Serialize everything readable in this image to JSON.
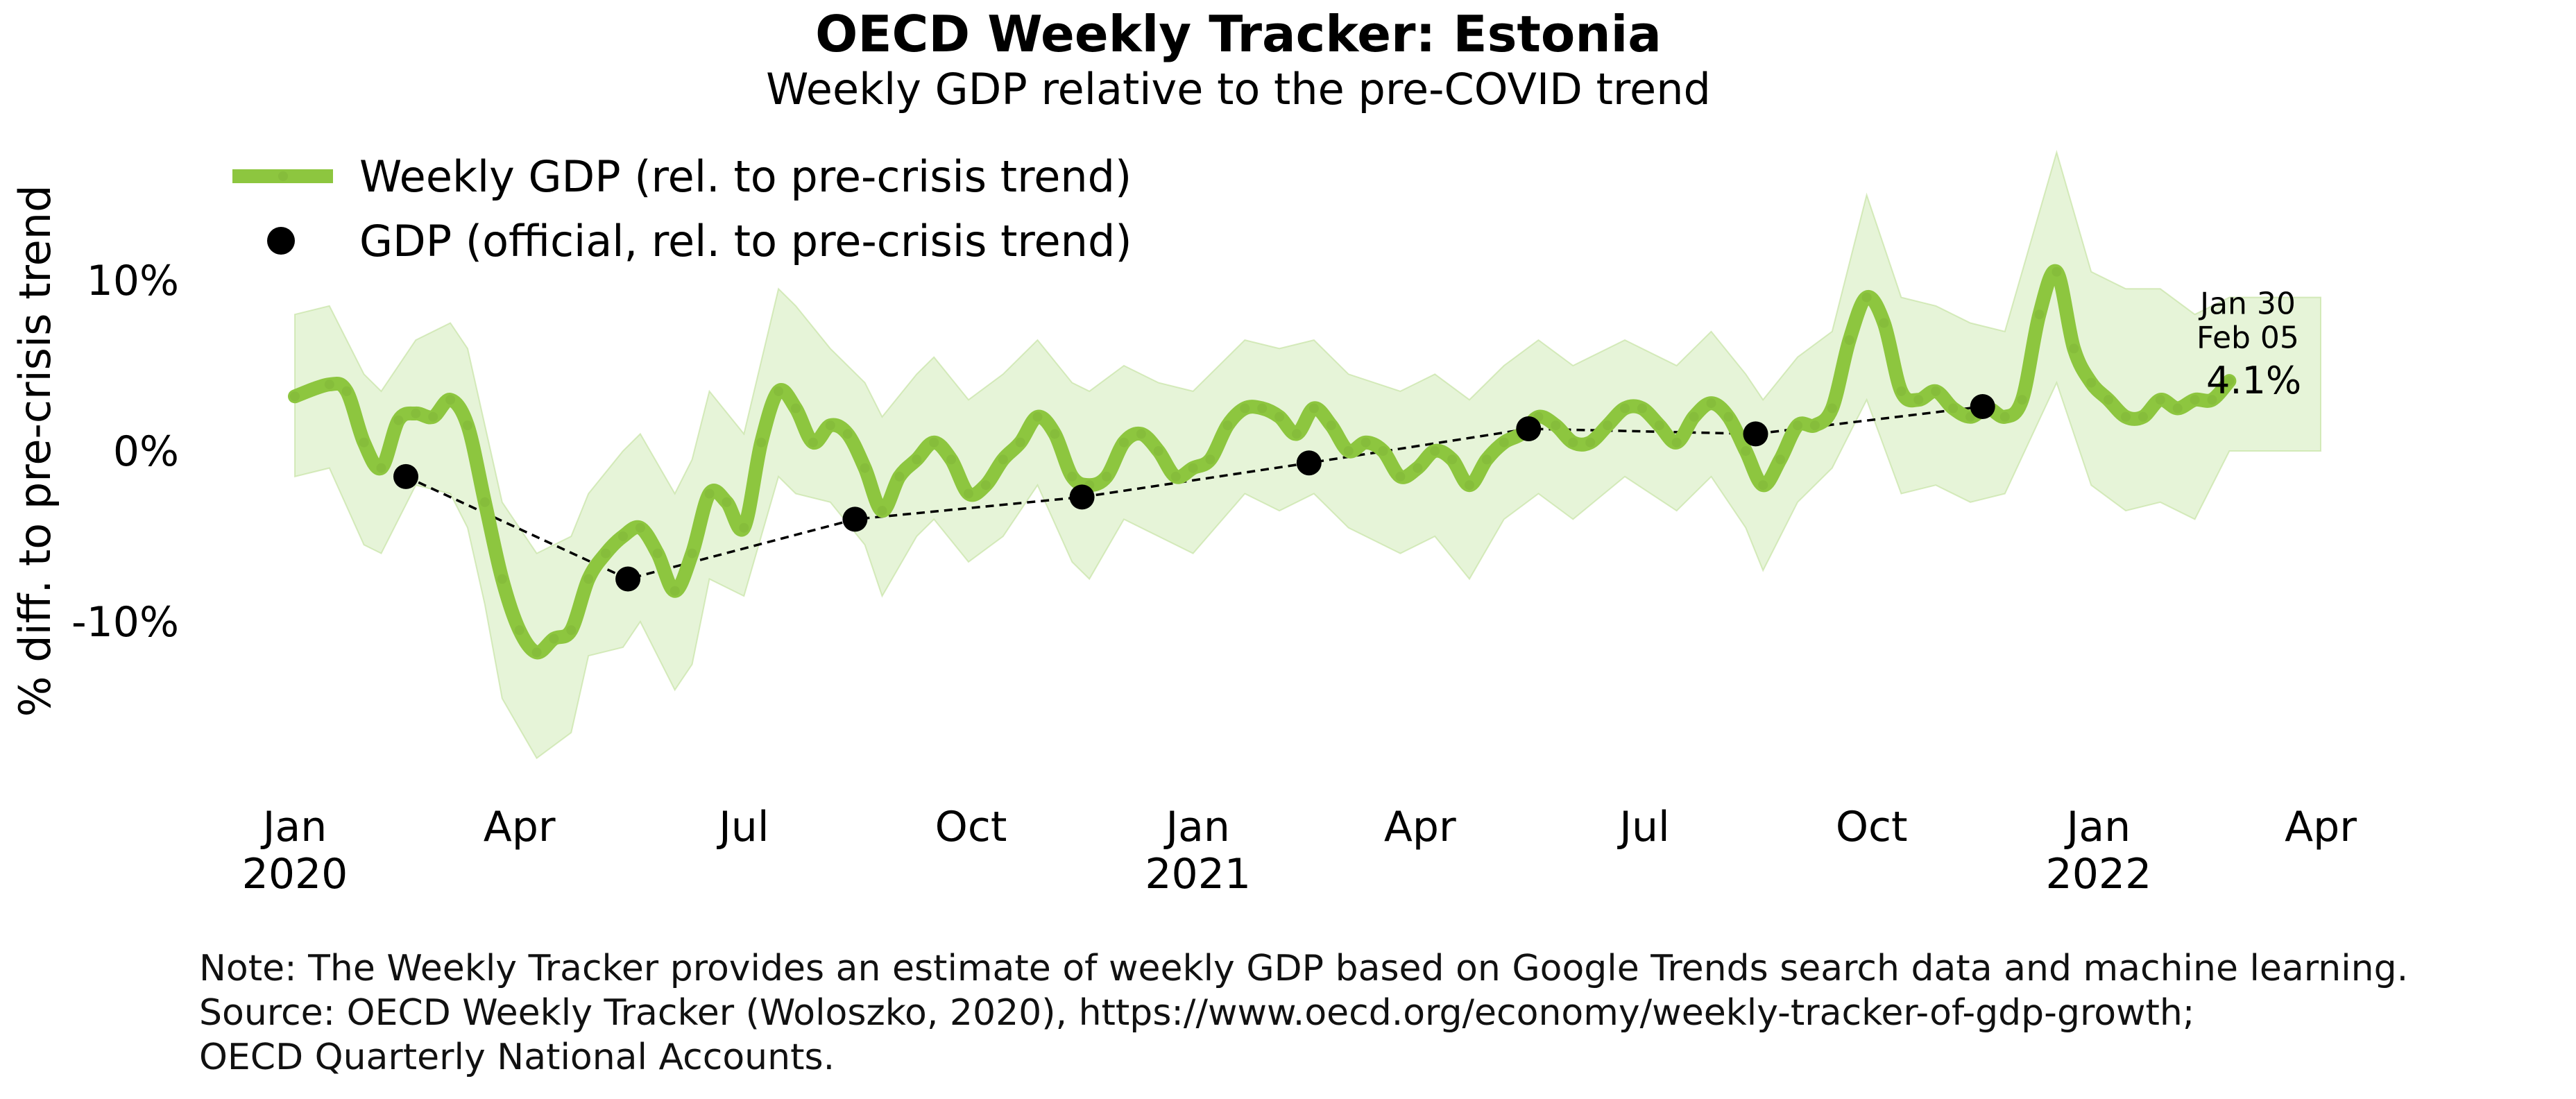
{
  "chart_data": {
    "type": "line",
    "title": "OECD Weekly Tracker: Estonia",
    "subtitle": "Weekly GDP relative to the pre-COVID trend",
    "ylabel": "% diff. to pre-crisis trend",
    "xlabel": "",
    "ylim": [
      -20,
      15
    ],
    "y_ticks": [
      {
        "value": 10,
        "label": "10%"
      },
      {
        "value": 0,
        "label": "0%"
      },
      {
        "value": -10,
        "label": "-10%"
      }
    ],
    "x_range": [
      "2020-01-01",
      "2022-04-01"
    ],
    "x_ticks": [
      {
        "date": "2020-01-01",
        "label": "Jan",
        "year": "2020"
      },
      {
        "date": "2020-04-01",
        "label": "Apr",
        "year": ""
      },
      {
        "date": "2020-07-01",
        "label": "Jul",
        "year": ""
      },
      {
        "date": "2020-10-01",
        "label": "Oct",
        "year": ""
      },
      {
        "date": "2021-01-01",
        "label": "Jan",
        "year": "2021"
      },
      {
        "date": "2021-04-01",
        "label": "Apr",
        "year": ""
      },
      {
        "date": "2021-07-01",
        "label": "Jul",
        "year": ""
      },
      {
        "date": "2021-10-01",
        "label": "Oct",
        "year": ""
      },
      {
        "date": "2022-01-01",
        "label": "Jan",
        "year": "2022"
      },
      {
        "date": "2022-04-01",
        "label": "Apr",
        "year": ""
      }
    ],
    "grid": false,
    "legend_position": "top-left",
    "series": [
      {
        "name": "Weekly GDP (rel. to pre-crisis trend)",
        "style": "thick-line",
        "color": "#8dc63f",
        "points": [
          [
            "2020-01-01",
            3.2
          ],
          [
            "2020-01-15",
            3.9
          ],
          [
            "2020-01-22",
            3.5
          ],
          [
            "2020-01-29",
            0.5
          ],
          [
            "2020-02-05",
            -1.0
          ],
          [
            "2020-02-12",
            1.8
          ],
          [
            "2020-02-19",
            2.2
          ],
          [
            "2020-02-26",
            2.0
          ],
          [
            "2020-03-04",
            3.0
          ],
          [
            "2020-03-11",
            1.5
          ],
          [
            "2020-03-18",
            -3.0
          ],
          [
            "2020-03-25",
            -7.5
          ],
          [
            "2020-04-01",
            -10.5
          ],
          [
            "2020-04-08",
            -11.8
          ],
          [
            "2020-04-15",
            -11.0
          ],
          [
            "2020-04-22",
            -10.5
          ],
          [
            "2020-04-29",
            -7.5
          ],
          [
            "2020-05-06",
            -6.0
          ],
          [
            "2020-05-13",
            -5.0
          ],
          [
            "2020-05-20",
            -4.5
          ],
          [
            "2020-05-27",
            -6.0
          ],
          [
            "2020-06-03",
            -8.2
          ],
          [
            "2020-06-10",
            -6.0
          ],
          [
            "2020-06-17",
            -2.5
          ],
          [
            "2020-06-24",
            -3.0
          ],
          [
            "2020-07-01",
            -4.5
          ],
          [
            "2020-07-08",
            0.5
          ],
          [
            "2020-07-15",
            3.5
          ],
          [
            "2020-07-22",
            2.5
          ],
          [
            "2020-07-29",
            0.5
          ],
          [
            "2020-08-05",
            1.5
          ],
          [
            "2020-08-12",
            1.0
          ],
          [
            "2020-08-19",
            -1.0
          ],
          [
            "2020-08-26",
            -3.5
          ],
          [
            "2020-09-02",
            -1.5
          ],
          [
            "2020-09-09",
            -0.5
          ],
          [
            "2020-09-16",
            0.5
          ],
          [
            "2020-09-23",
            -0.5
          ],
          [
            "2020-09-30",
            -2.5
          ],
          [
            "2020-10-07",
            -2.0
          ],
          [
            "2020-10-14",
            -0.5
          ],
          [
            "2020-10-21",
            0.5
          ],
          [
            "2020-10-28",
            2.0
          ],
          [
            "2020-11-04",
            1.0
          ],
          [
            "2020-11-11",
            -1.5
          ],
          [
            "2020-11-18",
            -2.0
          ],
          [
            "2020-11-25",
            -1.5
          ],
          [
            "2020-12-02",
            0.5
          ],
          [
            "2020-12-09",
            1.0
          ],
          [
            "2020-12-16",
            0.0
          ],
          [
            "2020-12-23",
            -1.5
          ],
          [
            "2020-12-30",
            -1.0
          ],
          [
            "2021-01-06",
            -0.5
          ],
          [
            "2021-01-13",
            1.5
          ],
          [
            "2021-01-20",
            2.5
          ],
          [
            "2021-01-27",
            2.5
          ],
          [
            "2021-02-03",
            2.0
          ],
          [
            "2021-02-10",
            1.0
          ],
          [
            "2021-02-17",
            2.5
          ],
          [
            "2021-02-24",
            1.5
          ],
          [
            "2021-03-03",
            0.0
          ],
          [
            "2021-03-10",
            0.5
          ],
          [
            "2021-03-17",
            0.0
          ],
          [
            "2021-03-24",
            -1.5
          ],
          [
            "2021-03-31",
            -1.0
          ],
          [
            "2021-04-07",
            0.0
          ],
          [
            "2021-04-14",
            -0.5
          ],
          [
            "2021-04-21",
            -2.0
          ],
          [
            "2021-04-28",
            -0.5
          ],
          [
            "2021-05-05",
            0.5
          ],
          [
            "2021-05-12",
            1.0
          ],
          [
            "2021-05-19",
            2.0
          ],
          [
            "2021-05-26",
            1.5
          ],
          [
            "2021-06-02",
            0.5
          ],
          [
            "2021-06-09",
            0.5
          ],
          [
            "2021-06-16",
            1.5
          ],
          [
            "2021-06-23",
            2.5
          ],
          [
            "2021-06-30",
            2.5
          ],
          [
            "2021-07-07",
            1.5
          ],
          [
            "2021-07-14",
            0.5
          ],
          [
            "2021-07-21",
            2.0
          ],
          [
            "2021-07-28",
            2.8
          ],
          [
            "2021-08-04",
            2.0
          ],
          [
            "2021-08-11",
            0.0
          ],
          [
            "2021-08-18",
            -2.0
          ],
          [
            "2021-08-25",
            -0.5
          ],
          [
            "2021-09-01",
            1.5
          ],
          [
            "2021-09-08",
            1.5
          ],
          [
            "2021-09-15",
            2.5
          ],
          [
            "2021-09-22",
            6.5
          ],
          [
            "2021-09-29",
            9.0
          ],
          [
            "2021-10-06",
            7.5
          ],
          [
            "2021-10-13",
            3.5
          ],
          [
            "2021-10-20",
            3.0
          ],
          [
            "2021-10-27",
            3.5
          ],
          [
            "2021-11-03",
            2.5
          ],
          [
            "2021-11-10",
            2.0
          ],
          [
            "2021-11-17",
            2.5
          ],
          [
            "2021-11-24",
            2.0
          ],
          [
            "2021-12-01",
            3.0
          ],
          [
            "2021-12-08",
            8.0
          ],
          [
            "2021-12-15",
            10.5
          ],
          [
            "2021-12-22",
            6.0
          ],
          [
            "2021-12-29",
            4.0
          ],
          [
            "2022-01-05",
            3.0
          ],
          [
            "2022-01-12",
            2.0
          ],
          [
            "2022-01-19",
            2.0
          ],
          [
            "2022-01-26",
            3.0
          ],
          [
            "2022-02-02",
            2.5
          ],
          [
            "2022-02-09",
            3.0
          ],
          [
            "2022-02-16",
            3.0
          ],
          [
            "2022-02-23",
            4.1
          ]
        ]
      },
      {
        "name": "GDP (official, rel. to pre-crisis trend)",
        "style": "dots-dashed",
        "color": "#000000",
        "points": [
          [
            "2020-02-15",
            -1.5
          ],
          [
            "2020-05-15",
            -7.5
          ],
          [
            "2020-08-15",
            -4.0
          ],
          [
            "2020-11-15",
            -2.7
          ],
          [
            "2021-02-15",
            -0.7
          ],
          [
            "2021-05-15",
            1.3
          ],
          [
            "2021-08-15",
            1.0
          ],
          [
            "2021-11-15",
            2.6
          ]
        ]
      }
    ],
    "band": {
      "color": "#c8e6a8",
      "points": [
        [
          "2020-01-01",
          8.0,
          -1.5
        ],
        [
          "2020-01-15",
          8.5,
          -1.0
        ],
        [
          "2020-01-29",
          4.5,
          -5.5
        ],
        [
          "2020-02-05",
          3.5,
          -6.0
        ],
        [
          "2020-02-19",
          6.5,
          -2.0
        ],
        [
          "2020-03-04",
          7.5,
          -2.5
        ],
        [
          "2020-03-11",
          6.0,
          -4.5
        ],
        [
          "2020-03-18",
          1.5,
          -9.0
        ],
        [
          "2020-03-25",
          -3.0,
          -14.5
        ],
        [
          "2020-04-08",
          -6.0,
          -18.0
        ],
        [
          "2020-04-22",
          -5.0,
          -16.5
        ],
        [
          "2020-04-29",
          -2.5,
          -12.0
        ],
        [
          "2020-05-13",
          0.0,
          -11.5
        ],
        [
          "2020-05-20",
          1.0,
          -10.0
        ],
        [
          "2020-06-03",
          -2.5,
          -14.0
        ],
        [
          "2020-06-10",
          -0.5,
          -12.5
        ],
        [
          "2020-06-17",
          3.5,
          -7.5
        ],
        [
          "2020-07-01",
          1.0,
          -8.5
        ],
        [
          "2020-07-15",
          9.5,
          -1.5
        ],
        [
          "2020-07-22",
          8.5,
          -2.5
        ],
        [
          "2020-08-05",
          6.0,
          -3.0
        ],
        [
          "2020-08-19",
          4.0,
          -5.5
        ],
        [
          "2020-08-26",
          2.0,
          -8.5
        ],
        [
          "2020-09-09",
          4.5,
          -5.0
        ],
        [
          "2020-09-16",
          5.5,
          -4.0
        ],
        [
          "2020-09-30",
          3.0,
          -6.5
        ],
        [
          "2020-10-14",
          4.5,
          -5.0
        ],
        [
          "2020-10-28",
          6.5,
          -2.0
        ],
        [
          "2020-11-11",
          4.0,
          -6.5
        ],
        [
          "2020-11-18",
          3.5,
          -7.5
        ],
        [
          "2020-12-02",
          5.0,
          -4.0
        ],
        [
          "2020-12-16",
          4.0,
          -5.0
        ],
        [
          "2020-12-30",
          3.5,
          -6.0
        ],
        [
          "2021-01-20",
          6.5,
          -2.5
        ],
        [
          "2021-02-03",
          6.0,
          -3.5
        ],
        [
          "2021-02-17",
          6.5,
          -2.5
        ],
        [
          "2021-03-03",
          4.5,
          -4.5
        ],
        [
          "2021-03-24",
          3.5,
          -6.0
        ],
        [
          "2021-04-07",
          4.5,
          -5.0
        ],
        [
          "2021-04-21",
          3.0,
          -7.5
        ],
        [
          "2021-05-05",
          5.0,
          -4.0
        ],
        [
          "2021-05-19",
          6.5,
          -2.5
        ],
        [
          "2021-06-02",
          5.0,
          -4.0
        ],
        [
          "2021-06-23",
          6.5,
          -1.5
        ],
        [
          "2021-07-14",
          5.0,
          -3.5
        ],
        [
          "2021-07-28",
          7.0,
          -1.5
        ],
        [
          "2021-08-11",
          4.5,
          -4.5
        ],
        [
          "2021-08-18",
          3.0,
          -7.0
        ],
        [
          "2021-09-01",
          5.5,
          -3.0
        ],
        [
          "2021-09-15",
          7.0,
          -1.0
        ],
        [
          "2021-09-29",
          15.0,
          3.0
        ],
        [
          "2021-10-13",
          9.0,
          -2.5
        ],
        [
          "2021-10-27",
          8.5,
          -2.0
        ],
        [
          "2021-11-10",
          7.5,
          -3.0
        ],
        [
          "2021-11-24",
          7.0,
          -2.5
        ],
        [
          "2021-12-15",
          17.5,
          4.0
        ],
        [
          "2021-12-29",
          10.5,
          -2.0
        ],
        [
          "2022-01-12",
          9.5,
          -3.5
        ],
        [
          "2022-01-26",
          9.5,
          -3.0
        ],
        [
          "2022-02-09",
          8.0,
          -4.0
        ],
        [
          "2022-02-23",
          9.0,
          0.0
        ],
        [
          "2022-04-01",
          9.0,
          0.0
        ]
      ]
    },
    "annotations": [
      {
        "text": "Jan 30",
        "date": "2022-02-23",
        "value": 8.6,
        "size": "small"
      },
      {
        "text": "Feb 05",
        "date": "2022-02-23",
        "value": 6.6,
        "size": "small"
      },
      {
        "text": "4.1%",
        "date": "2022-02-23",
        "value": 4.1,
        "size": "big"
      }
    ]
  },
  "note": {
    "line1": "Note: The Weekly Tracker provides an estimate of weekly GDP based on Google Trends search data and machine learning.",
    "line2": "Source: OECD Weekly Tracker (Woloszko, 2020), https://www.oecd.org/economy/weekly-tracker-of-gdp-growth;",
    "line3": "OECD Quarterly National Accounts."
  }
}
